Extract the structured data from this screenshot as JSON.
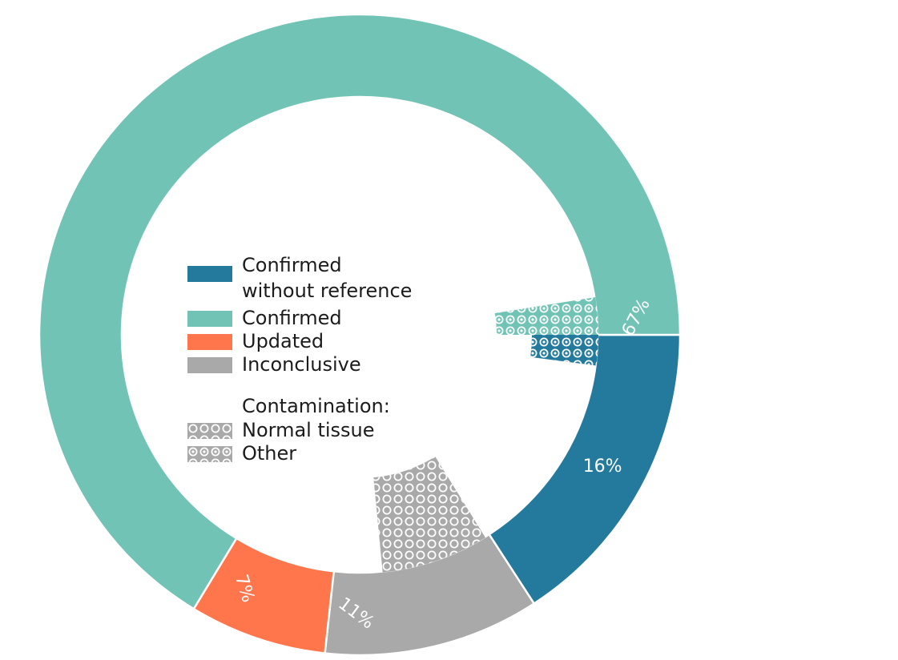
{
  "colors": {
    "confirmed_without_reference": "#247A9D",
    "confirmed": "#71C3B5",
    "updated": "#FF754C",
    "inconclusive": "#A9A9A9",
    "pattern_dots": "#ffffff"
  },
  "chart_data": {
    "type": "pie",
    "style": "donut",
    "slices": [
      {
        "name": "Confirmed without reference",
        "value": 16,
        "label": "16%",
        "color": "#247A9D",
        "contamination_pattern": "Other"
      },
      {
        "name": "Inconclusive",
        "value": 11,
        "label": "11%",
        "color": "#A9A9A9",
        "contamination_pattern": "Normal tissue"
      },
      {
        "name": "Updated",
        "value": 7,
        "label": "7%",
        "color": "#FF754C"
      },
      {
        "name": "Confirmed",
        "value": 67,
        "label": "67%",
        "color": "#71C3B5",
        "contamination_pattern": "Other"
      }
    ],
    "start": "3 o'clock",
    "direction": "clockwise",
    "legend": {
      "placement": "center",
      "items": [
        {
          "line1": "Confirmed",
          "line2": "without reference",
          "color": "#247A9D"
        },
        {
          "line1": "Confirmed",
          "color": "#71C3B5"
        },
        {
          "line1": "Updated",
          "color": "#FF754C"
        },
        {
          "line1": "Inconclusive",
          "color": "#A9A9A9"
        }
      ],
      "contamination_title": "Contamination:",
      "patterns": [
        {
          "label": "Normal tissue",
          "pattern": "rings"
        },
        {
          "label": "Other",
          "pattern": "dotted-rings"
        }
      ]
    }
  }
}
